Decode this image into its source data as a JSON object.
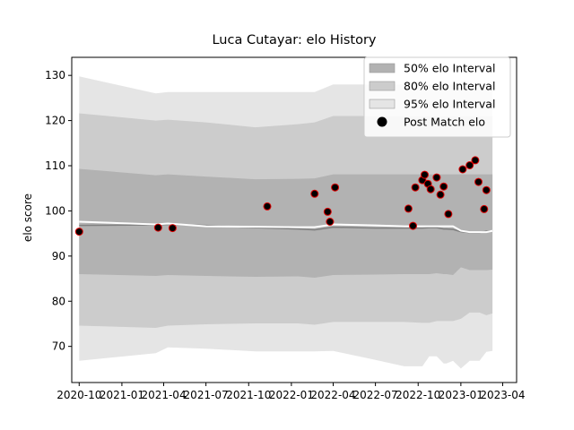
{
  "chart_data": {
    "type": "line",
    "title": "Luca Cutayar: elo History",
    "xlabel": "",
    "ylabel": "elo score",
    "ylim": [
      62,
      134
    ],
    "xlim": [
      "2020-09-15",
      "2023-05-01"
    ],
    "yticks": [
      70,
      80,
      90,
      100,
      110,
      120,
      130
    ],
    "xticks": [
      {
        "date": "2020-10-01",
        "label": "2020-10"
      },
      {
        "date": "2021-01-01",
        "label": "2021-01"
      },
      {
        "date": "2021-04-01",
        "label": "2021-04"
      },
      {
        "date": "2021-07-01",
        "label": "2021-07"
      },
      {
        "date": "2021-10-01",
        "label": "2021-10"
      },
      {
        "date": "2022-01-01",
        "label": "2022-01"
      },
      {
        "date": "2022-04-01",
        "label": "2022-04"
      },
      {
        "date": "2022-07-01",
        "label": "2022-07"
      },
      {
        "date": "2022-10-01",
        "label": "2022-10"
      },
      {
        "date": "2023-01-01",
        "label": "2023-01"
      },
      {
        "date": "2023-04-01",
        "label": "2023-04"
      }
    ],
    "legend": {
      "position": "upper right",
      "entries": [
        "50% elo Interval",
        "80% elo Interval",
        "95% elo Interval",
        "Post Match elo"
      ]
    },
    "bands": {
      "x": [
        "2020-10-01",
        "2021-03-15",
        "2021-04-10",
        "2021-07-01",
        "2021-10-15",
        "2022-01-15",
        "2022-02-20",
        "2022-04-01",
        "2022-07-01",
        "2022-09-01",
        "2022-10-10",
        "2022-10-25",
        "2022-11-10",
        "2022-11-25",
        "2022-12-01",
        "2022-12-15",
        "2023-01-01",
        "2023-01-20",
        "2023-02-10",
        "2023-02-25",
        "2023-03-10"
      ],
      "lo95": [
        66.8,
        68.5,
        69.8,
        69.5,
        68.9,
        68.9,
        68.9,
        69.0,
        67.0,
        65.6,
        65.6,
        67.8,
        67.8,
        66.2,
        66.2,
        66.8,
        65.1,
        66.8,
        66.8,
        68.8,
        69.0
      ],
      "hi95": [
        129.8,
        126.0,
        126.3,
        126.3,
        126.3,
        126.3,
        126.3,
        128.0,
        128.0,
        128.0,
        128.0,
        128.0,
        128.0,
        128.0,
        128.0,
        128.0,
        128.0,
        128.0,
        128.0,
        128.0,
        128.0
      ],
      "lo80": [
        74.6,
        74.1,
        74.6,
        74.9,
        75.1,
        75.1,
        74.8,
        75.4,
        75.4,
        75.4,
        75.2,
        75.2,
        75.6,
        75.6,
        75.6,
        75.6,
        76.1,
        77.5,
        77.5,
        76.9,
        77.3
      ],
      "hi80": [
        121.6,
        120.0,
        120.2,
        119.6,
        118.5,
        119.2,
        119.6,
        121.0,
        121.0,
        121.0,
        121.0,
        121.0,
        121.0,
        121.0,
        121.0,
        121.0,
        121.0,
        121.0,
        121.0,
        121.0,
        121.0
      ],
      "lo50": [
        86.0,
        85.6,
        85.8,
        85.6,
        85.4,
        85.5,
        85.2,
        85.8,
        85.9,
        86.0,
        86.0,
        86.0,
        86.2,
        86.0,
        86.0,
        85.8,
        87.5,
        86.9,
        86.9,
        86.9,
        87.0
      ],
      "hi50": [
        109.3,
        107.9,
        108.1,
        107.6,
        107.0,
        107.1,
        107.2,
        108.1,
        108.1,
        108.1,
        108.1,
        108.1,
        108.1,
        108.1,
        108.1,
        108.1,
        108.1,
        108.1,
        108.1,
        108.1,
        108.1
      ],
      "mean": [
        96.8,
        96.9,
        97.0,
        96.8,
        96.3,
        96.0,
        95.8,
        96.4,
        96.2,
        96.2,
        96.2,
        96.3,
        96.3,
        96.0,
        96.0,
        95.9,
        95.4,
        95.2,
        95.2,
        95.5,
        95.6
      ],
      "white": [
        97.6,
        97.0,
        97.2,
        96.6,
        96.5,
        96.4,
        96.4,
        97.0,
        96.8,
        96.6,
        96.6,
        96.6,
        96.6,
        96.6,
        96.6,
        96.6,
        95.6,
        95.3,
        95.3,
        95.3,
        95.6
      ]
    },
    "series": [
      {
        "name": "Post Match elo",
        "points": [
          [
            "2020-10-01",
            95.4
          ],
          [
            "2021-03-20",
            96.3
          ],
          [
            "2021-04-20",
            96.2
          ],
          [
            "2021-11-10",
            101.0
          ],
          [
            "2022-02-20",
            103.8
          ],
          [
            "2022-03-20",
            99.8
          ],
          [
            "2022-03-25",
            97.6
          ],
          [
            "2022-04-05",
            105.2
          ],
          [
            "2022-09-10",
            100.5
          ],
          [
            "2022-09-20",
            96.7
          ],
          [
            "2022-09-25",
            105.2
          ],
          [
            "2022-10-10",
            106.8
          ],
          [
            "2022-10-15",
            108.0
          ],
          [
            "2022-10-22",
            106.0
          ],
          [
            "2022-10-28",
            104.8
          ],
          [
            "2022-11-10",
            107.4
          ],
          [
            "2022-11-18",
            103.6
          ],
          [
            "2022-11-25",
            105.4
          ],
          [
            "2022-12-05",
            99.3
          ],
          [
            "2023-01-05",
            109.2
          ],
          [
            "2023-01-20",
            110.1
          ],
          [
            "2023-02-01",
            111.2
          ],
          [
            "2023-02-08",
            106.4
          ],
          [
            "2023-02-20",
            100.4
          ],
          [
            "2023-02-25",
            104.6
          ]
        ]
      }
    ],
    "colors": {
      "band95": "#e5e5e5",
      "band80": "#cccccc",
      "band50": "#b2b2b2",
      "mean_line": "#808080",
      "white_line": "#ffffff",
      "marker_fill": "#000000",
      "marker_edge": "#e00000"
    },
    "grid": false
  }
}
